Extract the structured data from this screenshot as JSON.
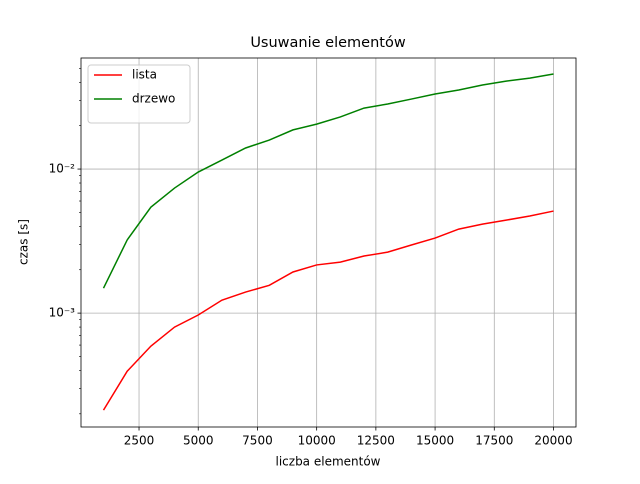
{
  "chart_data": {
    "type": "line",
    "title": "Usuwanie elementów",
    "x_label": "liczba elementów",
    "y_label": "czas [s]",
    "x": [
      1000,
      2000,
      3000,
      4000,
      5000,
      6000,
      7000,
      8000,
      9000,
      10000,
      11000,
      12000,
      13000,
      14000,
      15000,
      16000,
      17000,
      18000,
      19000,
      20000
    ],
    "series": [
      {
        "name": "lista",
        "color": "#ff0000",
        "values": [
          0.000212,
          0.000395,
          0.00059,
          0.0008,
          0.00097,
          0.00123,
          0.0014,
          0.00156,
          0.00193,
          0.00216,
          0.00226,
          0.00249,
          0.00265,
          0.00297,
          0.00332,
          0.00383,
          0.00415,
          0.00442,
          0.00472,
          0.00511
        ]
      },
      {
        "name": "drzewo",
        "color": "#008000",
        "values": [
          0.00149,
          0.00322,
          0.00544,
          0.00738,
          0.00953,
          0.01155,
          0.014,
          0.0159,
          0.0187,
          0.0205,
          0.023,
          0.0265,
          0.0283,
          0.0306,
          0.0332,
          0.0354,
          0.0383,
          0.0408,
          0.0428,
          0.0457
        ]
      }
    ],
    "xlim": [
      50,
      20950
    ],
    "xticks": [
      2500,
      5000,
      7500,
      10000,
      12500,
      15000,
      17500,
      20000
    ],
    "ylim": [
      0.000162,
      0.059
    ],
    "yticks": [
      {
        "value": 0.001,
        "label": "10⁻³"
      },
      {
        "value": 0.01,
        "label": "10⁻²"
      }
    ],
    "y_scale": "log",
    "grid": true,
    "legend": "upper-left"
  }
}
